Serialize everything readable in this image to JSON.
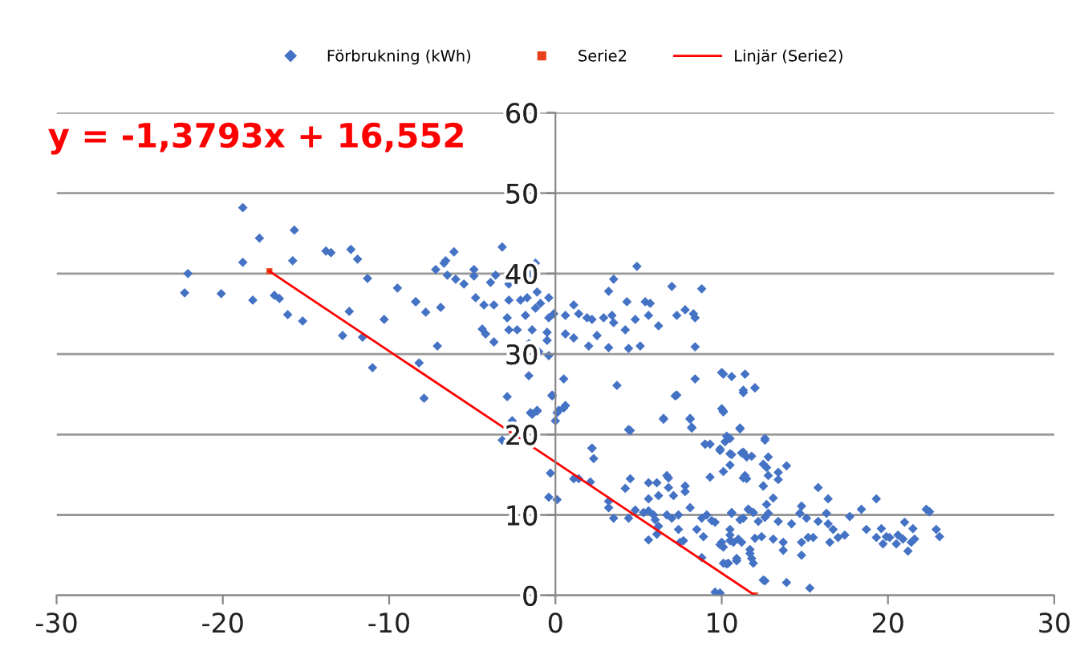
{
  "chart_data": {
    "type": "scatter",
    "annotations": [
      "y = -1,3793x + 16,552"
    ],
    "xlim": [
      -30,
      30
    ],
    "xticks": [
      -30,
      -20,
      -10,
      0,
      10,
      20,
      30
    ],
    "ylim": [
      0,
      60
    ],
    "yticks": [
      0,
      10,
      20,
      30,
      40,
      50,
      60
    ],
    "grid": "y",
    "legend": "top",
    "series": [
      {
        "name": "Förbrukning (kWh)",
        "marker": "diamond",
        "color": "#4472c4",
        "x": [
          -18.8,
          -17.8,
          -15.7,
          -18.8,
          -15.8,
          -13.8,
          -13.5,
          -12.3,
          -11.9,
          -11.3,
          -9.5,
          -8.4,
          -22.1,
          -22.3,
          -20.1,
          -18.2,
          -16.9,
          -16.6,
          -16.1,
          -15.2,
          -12.4,
          -10.3,
          -12.8,
          -11.6,
          -11.0,
          -3.2,
          -6.1,
          -6.6,
          -6.7,
          -7.2,
          -4.9,
          -1.2,
          4.9,
          -6.0,
          -6.5,
          -5.5,
          -4.9,
          -3.9,
          -3.6,
          -2.8,
          -1.5,
          -1.1,
          -1.7,
          -2.1,
          -0.9,
          -0.4,
          3.5,
          3.2,
          7.0,
          8.8,
          -8.4,
          -6.9,
          -7.8,
          -4.8,
          -4.3,
          -3.7,
          -2.8,
          -2.9,
          -1.8,
          -1.2,
          -0.4,
          -0.1,
          1.1,
          0.6,
          1.4,
          1.9,
          2.2,
          0.6,
          1.1,
          2.9,
          3.4,
          3.5,
          4.2,
          4.3,
          4.8,
          5.4,
          5.7,
          5.6,
          6.2,
          7.3,
          7.8,
          8.3,
          8.4,
          8.4,
          -4.4,
          -4.2,
          -3.7,
          -2.8,
          -2.3,
          -1.4,
          -0.5,
          -0.5,
          -1.0,
          -0.4,
          -1.6,
          -7.1,
          2.0,
          2.5,
          3.2,
          4.4,
          5.1,
          -8.2,
          -7.9,
          -1.6,
          -2.9,
          -0.2,
          0.5,
          3.7,
          7.2,
          8.4,
          10.0,
          -1.5,
          -1.1,
          -2.6,
          0.1,
          0.0,
          0.5,
          6.5,
          8.1,
          8.2,
          4.5,
          -3.2,
          2.2,
          9.0,
          10.0,
          -0.2,
          -1.1,
          -1.4,
          0.2,
          0.6,
          7.3,
          10.1,
          11.1,
          11.3,
          12.0,
          6.5,
          8.1,
          8.2,
          4.4,
          2.2,
          2.3,
          -0.3,
          -0.4,
          0.1,
          1.1,
          1.4,
          2.1,
          3.2,
          3.2,
          3.5,
          4.2,
          4.5,
          5.6,
          6.1,
          6.7,
          6.8,
          6.8,
          7.8,
          7.8,
          5.6,
          6.2,
          7.1,
          8.1,
          4.8,
          5.3,
          5.6,
          5.9,
          6.0,
          6.7,
          7.0,
          7.4,
          4.4,
          6.2,
          6.1,
          5.6,
          7.4,
          7.5,
          7.7,
          8.5,
          8.8,
          9.1,
          9.4,
          9.6,
          8.9,
          8.8,
          9.9,
          10.1,
          10.5,
          10.5,
          10.6,
          11.3,
          11.6,
          11.9,
          11.0,
          11.2,
          10.9,
          10.4,
          10.1,
          11.7,
          11.9,
          12.4,
          12.6,
          9.3,
          9.3,
          9.9,
          10.2,
          10.5,
          10.6,
          10.5,
          10.1,
          11.3,
          11.4,
          11.8,
          11.5,
          12.5,
          12.6,
          12.5,
          9.0,
          9.6,
          12.5,
          10.1,
          10.6,
          11.4,
          11.3,
          12.0,
          10.1,
          11.1,
          10.3,
          9.9,
          10.5,
          11.2,
          11.5,
          12.6,
          12.8,
          13.9,
          12.7,
          13.4,
          13.4,
          12.8,
          11.3,
          12.5,
          13.1,
          12.7,
          11.6,
          10.6,
          11.1,
          12.2,
          12.8,
          13.4,
          14.2,
          14.8,
          14.7,
          15.1,
          15.8,
          16.4,
          16.3,
          16.4,
          15.8,
          16.7,
          17.0,
          17.4,
          17.7,
          18.4,
          19.3,
          18.7,
          19.3,
          20.1,
          12.0,
          13.1,
          13.7,
          13.7,
          14.8,
          14.8,
          15.5,
          16.5,
          11.7,
          11.8,
          10.7,
          10.9,
          10.3,
          12.6,
          13.9,
          15.3,
          9.9,
          10.0,
          10.5,
          15.2,
          22.3,
          22.5,
          22.9,
          23.1,
          21.0,
          21.5,
          20.6,
          20.5,
          20.9,
          21.4,
          21.6,
          21.2,
          19.6,
          19.7,
          19.9
        ],
        "values": [
          48.2,
          44.4,
          45.4,
          41.4,
          41.6,
          42.8,
          42.6,
          43.0,
          41.8,
          39.4,
          38.2,
          36.5,
          40.0,
          37.6,
          37.5,
          36.7,
          37.3,
          36.9,
          34.9,
          34.1,
          35.3,
          34.3,
          32.3,
          32.1,
          28.3,
          43.3,
          42.7,
          41.6,
          41.3,
          40.5,
          40.5,
          41.3,
          40.9,
          39.3,
          39.8,
          38.7,
          39.7,
          38.9,
          39.8,
          38.7,
          40.0,
          37.7,
          37.0,
          36.7,
          36.3,
          37.0,
          39.3,
          37.8,
          38.4,
          38.1,
          36.5,
          35.8,
          35.2,
          37.0,
          36.1,
          36.1,
          36.7,
          34.5,
          34.8,
          35.7,
          34.5,
          35.0,
          36.1,
          34.8,
          35.0,
          34.5,
          34.3,
          32.5,
          32.0,
          34.5,
          34.8,
          33.9,
          33.0,
          36.5,
          34.3,
          36.5,
          36.3,
          34.8,
          33.5,
          34.8,
          35.5,
          35.0,
          34.5,
          30.9,
          33.1,
          32.5,
          31.5,
          33.0,
          33.0,
          33.0,
          32.7,
          31.7,
          30.3,
          29.8,
          31.3,
          31.0,
          31.0,
          32.3,
          30.8,
          30.7,
          31.0,
          28.9,
          24.5,
          27.3,
          24.7,
          24.8,
          26.9,
          26.1,
          24.8,
          26.9,
          27.7,
          22.7,
          22.9,
          21.7,
          22.7,
          21.7,
          23.3,
          21.9,
          21.9,
          20.8,
          20.5,
          19.3,
          18.3,
          18.8,
          23.2,
          24.9,
          23.0,
          22.5,
          23.0,
          23.6,
          24.9,
          22.9,
          20.8,
          25.5,
          25.8,
          22.0,
          22.0,
          20.9,
          20.6,
          18.3,
          17.0,
          15.2,
          12.2,
          11.9,
          14.5,
          14.5,
          14.1,
          11.7,
          10.9,
          9.6,
          13.3,
          14.5,
          14.0,
          14.0,
          14.9,
          14.6,
          13.4,
          13.6,
          12.9,
          12.0,
          12.4,
          12.4,
          10.9,
          10.6,
          10.3,
          10.5,
          10.0,
          9.4,
          10.0,
          9.6,
          10.0,
          9.6,
          8.6,
          7.6,
          6.9,
          8.2,
          6.6,
          6.8,
          8.2,
          9.6,
          10.0,
          9.3,
          9.1,
          7.3,
          4.7,
          6.3,
          6.0,
          6.8,
          8.2,
          10.3,
          9.6,
          10.7,
          10.3,
          7.0,
          6.6,
          4.3,
          4.0,
          4.0,
          5.7,
          4.0,
          7.3,
          9.7,
          14.7,
          18.8,
          18.2,
          19.1,
          19.5,
          17.5,
          16.2,
          15.4,
          17.8,
          14.9,
          17.3,
          14.5,
          13.6,
          19.5,
          16.3,
          18.8,
          0.4,
          1.9,
          27.5,
          27.2,
          27.5,
          25.2,
          25.8,
          22.8,
          20.7,
          19.8,
          18.0,
          17.6,
          17.7,
          17.2,
          19.3,
          17.2,
          16.1,
          15.9,
          15.3,
          14.4,
          14.9,
          14.6,
          13.6,
          12.1,
          11.3,
          10.7,
          10.2,
          9.4,
          9.2,
          10.2,
          9.2,
          8.9,
          11.1,
          10.2,
          9.6,
          13.4,
          12.0,
          10.2,
          8.9,
          9.2,
          8.2,
          7.2,
          7.5,
          9.8,
          10.7,
          12.0,
          8.2,
          7.2,
          7.2,
          7.1,
          7.0,
          6.6,
          5.6,
          6.6,
          5.0,
          7.2,
          6.6,
          5.2,
          4.6,
          6.6,
          4.6,
          3.9,
          1.8,
          1.6,
          0.9,
          0.3,
          6.6,
          7.5,
          7.2,
          10.7,
          10.4,
          8.2,
          7.3,
          9.1,
          8.3,
          7.5,
          6.4,
          7.0,
          6.6,
          7.0,
          5.5,
          8.3,
          6.4,
          7.3
        ]
      },
      {
        "name": "Serie2",
        "marker": "square",
        "color": "#e8401c",
        "x": [
          -17.2,
          12.0
        ],
        "values": [
          40.3,
          0.0
        ]
      },
      {
        "name": "Linjär (Serie2)",
        "type": "line",
        "marker": "none",
        "color": "#ff0000",
        "x": [
          -17.2,
          12.0
        ],
        "values": [
          40.3,
          0.0
        ]
      }
    ]
  }
}
